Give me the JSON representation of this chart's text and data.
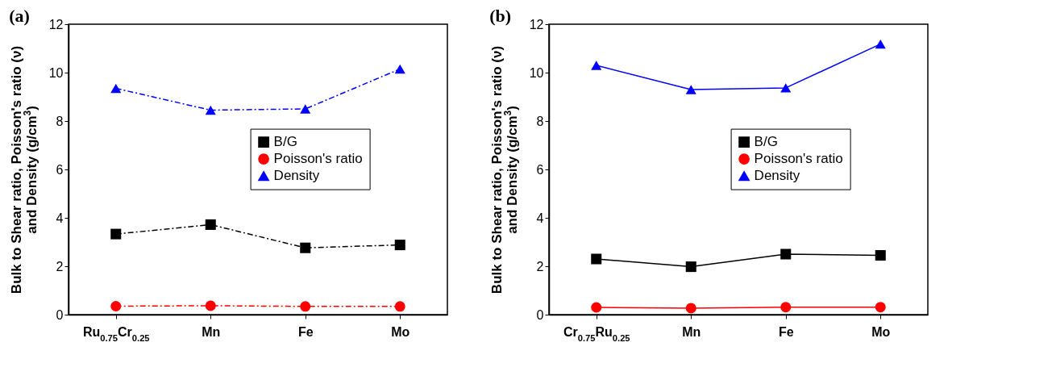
{
  "chart_data": [
    {
      "type": "line",
      "title": "(a)",
      "ylabel": "Bulk to Shear ratio, Poisson's ratio (ν) and Density (g/cm$^{3}$)",
      "categories": [
        "Ru$_{0.75}$Cr$_{0.25}$",
        "Mn",
        "Fe",
        "Mo"
      ],
      "ylim": [
        0,
        12
      ],
      "yticks": [
        0,
        2,
        4,
        6,
        8,
        10,
        12
      ],
      "grid": false,
      "legend": "right",
      "line_style": "dashed",
      "series": [
        {
          "name": "B/G",
          "color": "#000000",
          "marker": "square",
          "values": [
            3.33,
            3.72,
            2.76,
            2.88
          ]
        },
        {
          "name": "Poisson's ratio",
          "color": "#ff0000",
          "marker": "circle",
          "values": [
            0.35,
            0.37,
            0.34,
            0.34
          ]
        },
        {
          "name": "Density",
          "color": "#0000ff",
          "marker": "triangle",
          "values": [
            9.35,
            8.45,
            8.5,
            10.15
          ]
        }
      ]
    },
    {
      "type": "line",
      "title": "(b)",
      "ylabel": "Bulk to Shear ratio, Poisson's ratio (ν) and Density (g/cm$^{3}$)",
      "categories": [
        "Cr$_{0.75}$Ru$_{0.25}$",
        "Mn",
        "Fe",
        "Mo"
      ],
      "ylim": [
        0,
        12
      ],
      "yticks": [
        0,
        2,
        4,
        6,
        8,
        10,
        12
      ],
      "grid": false,
      "legend": "right",
      "line_style": "solid",
      "series": [
        {
          "name": "B/G",
          "color": "#000000",
          "marker": "square",
          "values": [
            2.3,
            1.98,
            2.5,
            2.45
          ]
        },
        {
          "name": "Poisson's ratio",
          "color": "#ff0000",
          "marker": "circle",
          "values": [
            0.3,
            0.27,
            0.31,
            0.31
          ]
        },
        {
          "name": "Density",
          "color": "#0000ff",
          "marker": "triangle",
          "values": [
            10.3,
            9.3,
            9.37,
            11.18
          ]
        }
      ]
    }
  ]
}
